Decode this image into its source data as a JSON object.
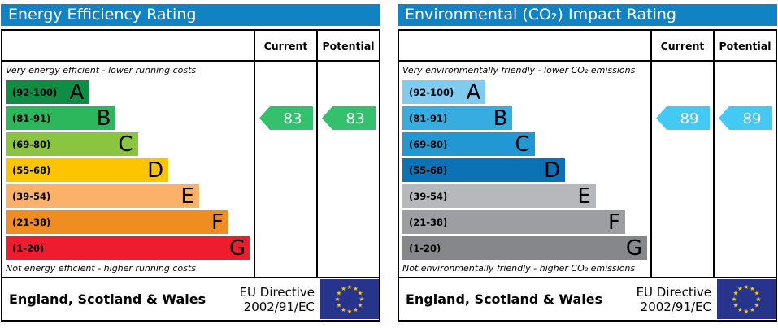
{
  "colors": {
    "header_bar": "#1182c4",
    "border": "#000000"
  },
  "eu_flag": {
    "background": "#26348b",
    "stars": "#ffcc00",
    "star_char": "★"
  },
  "chart_data": [
    {
      "type": "bar",
      "subtype": "epc-rating-scale",
      "title": "Energy Efficiency Rating",
      "columns": {
        "current": "Current",
        "potential": "Potential"
      },
      "top_note": "Very energy efficient - lower running costs",
      "bottom_note": "Not energy efficient - higher running costs",
      "bands": [
        {
          "letter": "A",
          "range": "(92-100)",
          "min": 92,
          "max": 100,
          "color": "#0e8e45",
          "width_pct": 34
        },
        {
          "letter": "B",
          "range": "(81-91)",
          "min": 81,
          "max": 91,
          "color": "#2db75c",
          "width_pct": 45
        },
        {
          "letter": "C",
          "range": "(69-80)",
          "min": 69,
          "max": 80,
          "color": "#8bc540",
          "width_pct": 54
        },
        {
          "letter": "D",
          "range": "(55-68)",
          "min": 55,
          "max": 68,
          "color": "#fdc400",
          "width_pct": 66.5
        },
        {
          "letter": "E",
          "range": "(39-54)",
          "min": 39,
          "max": 54,
          "color": "#fbb268",
          "width_pct": 79
        },
        {
          "letter": "F",
          "range": "(21-38)",
          "min": 21,
          "max": 38,
          "color": "#ef8d22",
          "width_pct": 91
        },
        {
          "letter": "G",
          "range": "(1-20)",
          "min": 1,
          "max": 20,
          "color": "#ee1c2e",
          "width_pct": 100
        }
      ],
      "current": {
        "value": "83",
        "band": "B",
        "color": "#33c16e"
      },
      "potential": {
        "value": "83",
        "band": "B",
        "color": "#33c16e"
      },
      "footer": {
        "region": "England, Scotland & Wales",
        "directive_line1": "EU Directive",
        "directive_line2": "2002/91/EC"
      }
    },
    {
      "type": "bar",
      "subtype": "epc-rating-scale",
      "title": "Environmental (CO₂) Impact Rating",
      "columns": {
        "current": "Current",
        "potential": "Potential"
      },
      "top_note": "Very environmentally friendly - lower CO₂ emissions",
      "bottom_note": "Not environmentally friendly - higher CO₂ emissions",
      "bands": [
        {
          "letter": "A",
          "range": "(92-100)",
          "min": 92,
          "max": 100,
          "color": "#7fccf0",
          "width_pct": 34
        },
        {
          "letter": "B",
          "range": "(81-91)",
          "min": 81,
          "max": 91,
          "color": "#36ace1",
          "width_pct": 45
        },
        {
          "letter": "C",
          "range": "(69-80)",
          "min": 69,
          "max": 80,
          "color": "#2197d3",
          "width_pct": 54
        },
        {
          "letter": "D",
          "range": "(55-68)",
          "min": 55,
          "max": 68,
          "color": "#0b72b6",
          "width_pct": 66.5
        },
        {
          "letter": "E",
          "range": "(39-54)",
          "min": 39,
          "max": 54,
          "color": "#b6b8bb",
          "width_pct": 79
        },
        {
          "letter": "F",
          "range": "(21-38)",
          "min": 21,
          "max": 38,
          "color": "#9c9ea1",
          "width_pct": 91
        },
        {
          "letter": "G",
          "range": "(1-20)",
          "min": 1,
          "max": 20,
          "color": "#85878a",
          "width_pct": 100
        }
      ],
      "current": {
        "value": "89",
        "band": "B",
        "color": "#44c9f4"
      },
      "potential": {
        "value": "89",
        "band": "B",
        "color": "#44c9f4"
      },
      "footer": {
        "region": "England, Scotland & Wales",
        "directive_line1": "EU Directive",
        "directive_line2": "2002/91/EC"
      }
    }
  ]
}
